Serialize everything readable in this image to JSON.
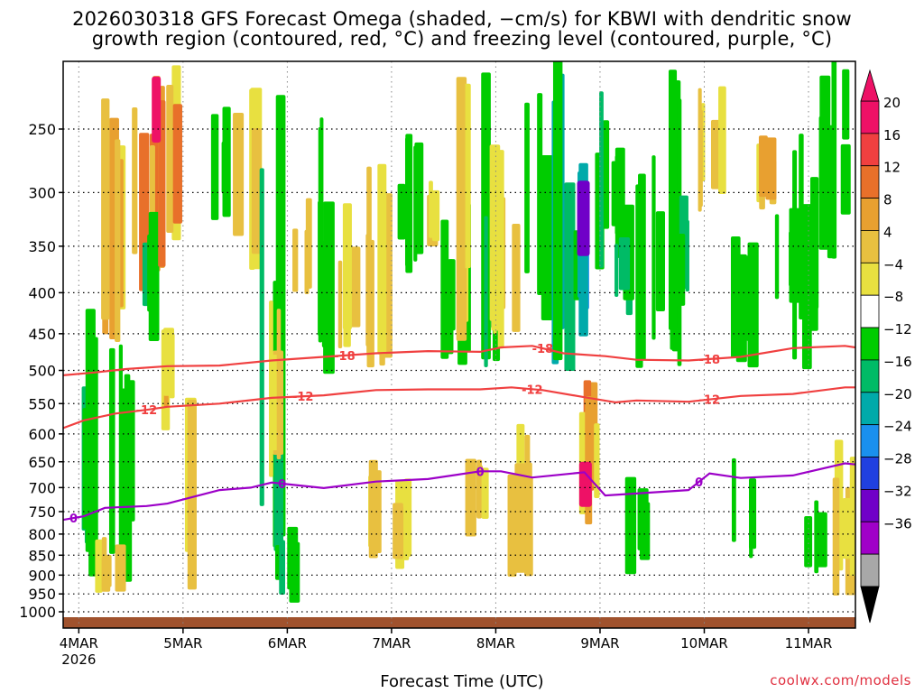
{
  "title": {
    "line1": "2026030318 GFS Forecast Omega (shaded, −cm/s) for KBWI with dendritic snow",
    "line2": "growth region (contoured, red, °C) and freezing level (contoured, purple, °C)"
  },
  "credit": "coolwx.com/models",
  "chart_data": {
    "type": "heatmap",
    "xlabel": "Forecast Time (UTC)",
    "x_ticks": [
      "4MAR",
      "5MAR",
      "6MAR",
      "7MAR",
      "8MAR",
      "9MAR",
      "10MAR",
      "11MAR"
    ],
    "x_year": "2026",
    "x_range_days": [
      0.0,
      7.6
    ],
    "y_axis": {
      "ticks": [
        250,
        300,
        350,
        400,
        450,
        500,
        550,
        600,
        650,
        700,
        750,
        800,
        850,
        900,
        950,
        1000
      ],
      "range": [
        1040,
        200
      ],
      "scale": "log-pressure"
    },
    "colorbar": {
      "labels": [
        "20",
        "16",
        "12",
        "8",
        "4",
        "−4",
        "−8",
        "−12",
        "−16",
        "−20",
        "−24",
        "−28",
        "−32",
        "−36"
      ],
      "colors": [
        "#ee1166",
        "#f04040",
        "#e8702a",
        "#e8a030",
        "#e8c040",
        "#e8e040",
        "#ffffff",
        "#00cc00",
        "#00bb66",
        "#00aaaa",
        "#1a90ee",
        "#2040e0",
        "#7000c8",
        "#a000c8",
        "#a8a8a8"
      ]
    },
    "contours": [
      {
        "label": "-18",
        "color": "#f04040",
        "x": [
          0,
          0.3,
          0.6,
          1.0,
          1.5,
          2.0,
          2.5,
          3.0,
          3.5,
          4.0,
          4.2,
          4.5,
          4.8,
          5.2,
          5.5,
          6.0,
          6.5,
          7.0,
          7.5,
          7.6
        ],
        "p": [
          507,
          503,
          498,
          494,
          493,
          486,
          481,
          476,
          473,
          474,
          468,
          466,
          476,
          480,
          485,
          486,
          481,
          469,
          466,
          468
        ],
        "label_x": [
          2.7,
          4.6,
          6.2
        ]
      },
      {
        "label": "-12",
        "color": "#f04040",
        "x": [
          0,
          0.2,
          0.5,
          0.8,
          1.0,
          1.5,
          2.0,
          2.5,
          3.0,
          3.5,
          4.0,
          4.3,
          4.6,
          5.0,
          5.3,
          5.5,
          6.0,
          6.5,
          7.0,
          7.5,
          7.6
        ],
        "p": [
          590,
          577,
          566,
          560,
          555,
          550,
          541,
          537,
          529,
          528,
          528,
          525,
          529,
          540,
          548,
          545,
          547,
          538,
          535,
          525,
          525
        ],
        "label_x": [
          0.8,
          2.3,
          4.5,
          6.2
        ]
      },
      {
        "label": "0",
        "color": "#9c00c8",
        "x": [
          0,
          0.2,
          0.4,
          0.8,
          1.0,
          1.5,
          1.8,
          2.0,
          2.5,
          3.0,
          3.5,
          4.0,
          4.2,
          4.5,
          5.0,
          5.2,
          5.5,
          6.0,
          6.2,
          6.5,
          7.0,
          7.5,
          7.6
        ],
        "p": [
          768,
          760,
          742,
          738,
          733,
          705,
          700,
          690,
          701,
          688,
          683,
          668,
          668,
          680,
          670,
          716,
          712,
          705,
          672,
          681,
          676,
          653,
          655
        ],
        "label_x": [
          0.1,
          2.1,
          4.0,
          6.1
        ]
      }
    ]
  }
}
